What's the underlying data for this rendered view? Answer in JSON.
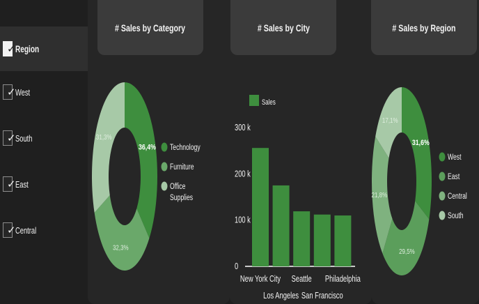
{
  "filters": {
    "header": "Region",
    "items": [
      {
        "label": "West"
      },
      {
        "label": "South"
      },
      {
        "label": "East"
      },
      {
        "label": "Central"
      }
    ]
  },
  "tiles": {
    "category_title": "# Sales by Category",
    "city_title": "# Sales by City",
    "region_title": "# Sales by Region"
  },
  "chart_data": [
    {
      "type": "pie",
      "title": "# Sales by Category",
      "labels": [
        "Technology",
        "Furniture",
        "Office Supplies"
      ],
      "values": [
        36.4,
        32.3,
        31.3
      ],
      "value_labels": [
        "36,4%",
        "32,3%",
        "31,3%"
      ],
      "colors": [
        "#3e8e3e",
        "#6aa86a",
        "#a7c9a7"
      ],
      "legend_lines": [
        [
          "Technology"
        ],
        [
          "Furniture"
        ],
        [
          "Office",
          "Supplies"
        ]
      ]
    },
    {
      "type": "bar",
      "title": "# Sales by City",
      "categories": [
        "New York City",
        "Los Angeles",
        "Seattle",
        "San Francisco",
        "Philadelphia"
      ],
      "values": [
        256000,
        175000,
        119000,
        112000,
        110000
      ],
      "series": [
        {
          "name": "Sales",
          "values": [
            256000,
            175000,
            119000,
            112000,
            110000
          ]
        }
      ],
      "ylim": [
        0,
        300000
      ],
      "ticks": [
        "0",
        "100 k",
        "200 k",
        "300 k"
      ],
      "colors": [
        "#3e8e3e"
      ]
    },
    {
      "type": "pie",
      "title": "# Sales by Region",
      "labels": [
        "West",
        "East",
        "Central",
        "South"
      ],
      "values": [
        31.6,
        29.5,
        21.8,
        17.1
      ],
      "value_labels": [
        "31,6%",
        "29,5%",
        "21,8%",
        "17,1%"
      ],
      "colors": [
        "#3e8e3e",
        "#5b9e5b",
        "#7fb27f",
        "#a7c9a7"
      ]
    }
  ]
}
